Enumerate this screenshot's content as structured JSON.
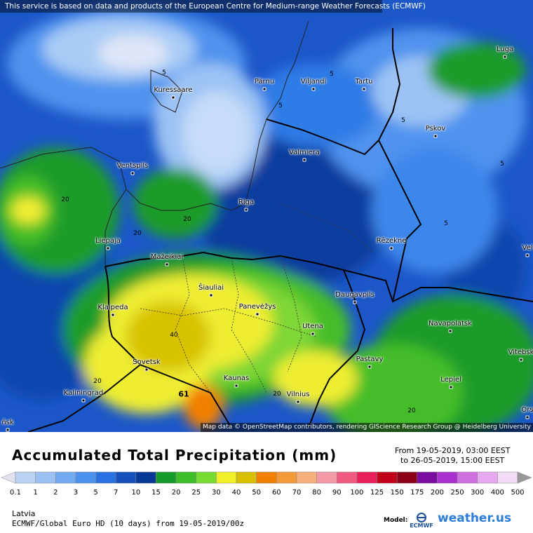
{
  "header": {
    "banner": "This service is based on data and products of the European Centre for Medium-range Weather Forecasts (ECMWF)"
  },
  "map": {
    "attribution": "Map data © OpenStreetMap contributors, rendering GIScience Research Group @ Heidelberg University",
    "cities": [
      {
        "id": "luga",
        "name": "Luga"
      },
      {
        "id": "kuressaare",
        "name": "Kuressaare"
      },
      {
        "id": "parnu",
        "name": "Pärnu"
      },
      {
        "id": "viljandi",
        "name": "Viljandi"
      },
      {
        "id": "tartu",
        "name": "Tartu"
      },
      {
        "id": "pskov",
        "name": "Pskov"
      },
      {
        "id": "valmiera",
        "name": "Valmiera"
      },
      {
        "id": "ventspils",
        "name": "Ventspils"
      },
      {
        "id": "riga",
        "name": "Riga"
      },
      {
        "id": "liepaja",
        "name": "Liepaja"
      },
      {
        "id": "rezekne",
        "name": "Rēzekne"
      },
      {
        "id": "vel",
        "name": "Vel"
      },
      {
        "id": "mazeikiai",
        "name": "Mažeikiai"
      },
      {
        "id": "siauliai",
        "name": "Šiauliai"
      },
      {
        "id": "klaipeda",
        "name": "Klaipeda"
      },
      {
        "id": "panevezys",
        "name": "Panevėžys"
      },
      {
        "id": "daugavpils",
        "name": "Daugavpils"
      },
      {
        "id": "utena",
        "name": "Utena"
      },
      {
        "id": "navapolatsk",
        "name": "Navapolatsk"
      },
      {
        "id": "vitebsk",
        "name": "Vitebsk"
      },
      {
        "id": "sovetsk",
        "name": "Sovetsk"
      },
      {
        "id": "pastavy",
        "name": "Pastavy"
      },
      {
        "id": "kaunas",
        "name": "Kaunas"
      },
      {
        "id": "lepiel",
        "name": "Lepiel"
      },
      {
        "id": "kaliningrad",
        "name": "Kaliningrad"
      },
      {
        "id": "vilnius",
        "name": "Vilnius"
      },
      {
        "id": "ors",
        "name": "Ors"
      },
      {
        "id": "nsk",
        "name": "ńsk"
      }
    ],
    "contour_labels": [
      "5",
      "5",
      "5",
      "5",
      "5",
      "5",
      "20",
      "20",
      "20",
      "40",
      "20",
      "61",
      "20",
      "20"
    ]
  },
  "legend": {
    "title": "Accumulated Total Precipitation (mm)",
    "from_label": "From",
    "from_value": "19-05-2019, 03:00 EEST",
    "to_label": "to",
    "to_value": "26-05-2019, 15:00 EEST",
    "unit": "mm",
    "levels": [
      "0.1",
      "1",
      "2",
      "3",
      "5",
      "7",
      "10",
      "15",
      "20",
      "25",
      "30",
      "40",
      "50",
      "60",
      "70",
      "80",
      "90",
      "100",
      "125",
      "150",
      "175",
      "200",
      "250",
      "300",
      "400",
      "500"
    ],
    "colors": [
      "#e2e2f2",
      "#bcd2f5",
      "#9bc1f3",
      "#74aaf2",
      "#4c91ee",
      "#2a72e4",
      "#1451be",
      "#073896",
      "#159b2a",
      "#3dbd27",
      "#78db32",
      "#f0f02a",
      "#d8c000",
      "#f08000",
      "#f49a36",
      "#f8b07a",
      "#f49aa6",
      "#f05a80",
      "#e8205a",
      "#c00018",
      "#8c0018",
      "#7a0da0",
      "#aa30d0",
      "#d070e0",
      "#e6a8ee",
      "#f2dcf6",
      "#fbf2fb",
      "#d8d8d8"
    ]
  },
  "footer": {
    "region": "Latvia",
    "model": "ECMWF/Global Euro HD (10 days) from 19-05-2019/00z",
    "model_label": "Model:",
    "ecmwf_logo_text": "ECMWF",
    "brand": "weather.us"
  }
}
